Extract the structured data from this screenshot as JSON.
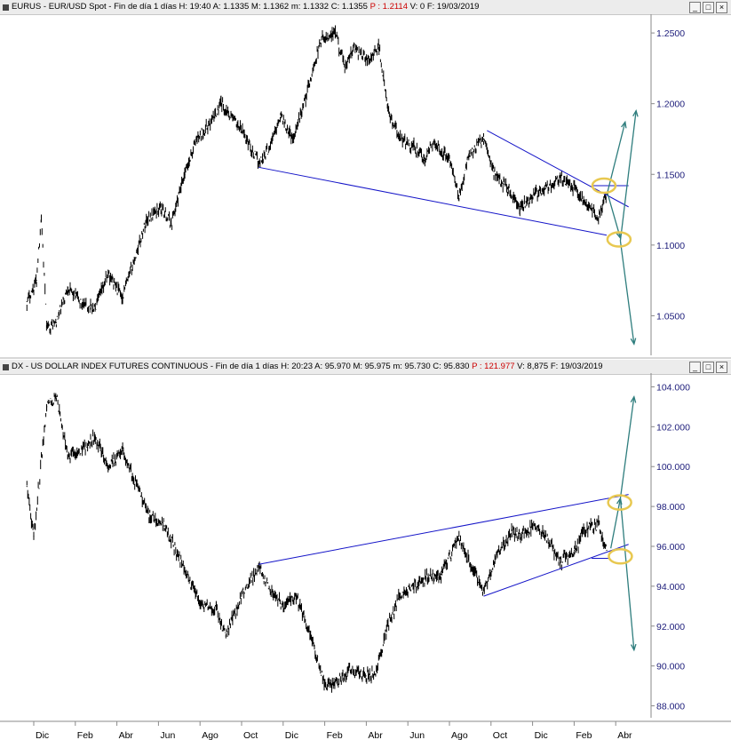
{
  "panes": {
    "top": {
      "symbol": "EURUS",
      "title": "EUR/USD Spot",
      "period": "Fin de día 1 días",
      "stats": [
        {
          "label": "H:",
          "value": "19:40"
        },
        {
          "label": "A:",
          "value": "1.1335"
        },
        {
          "label": "M:",
          "value": "1.1362"
        },
        {
          "label": "m:",
          "value": "1.1332"
        },
        {
          "label": "C:",
          "value": "1.1355"
        }
      ],
      "p_label": "P : 1.2114",
      "v_label": "V: 0",
      "date_label": "F: 19/03/2019"
    },
    "bottom": {
      "symbol": "DX",
      "title": "US DOLLAR INDEX FUTURES CONTINUOUS",
      "period": "Fin de día 1 días",
      "stats": [
        {
          "label": "H:",
          "value": "20:23"
        },
        {
          "label": "A:",
          "value": "95.970"
        },
        {
          "label": "M:",
          "value": "95.975"
        },
        {
          "label": "m:",
          "value": "95.730"
        },
        {
          "label": "C:",
          "value": "95.830"
        }
      ],
      "p_label": "P : 121.977",
      "v_label": "V: 8,875",
      "date_label": "F: 19/03/2019"
    }
  },
  "window_buttons": {
    "minimize": "_",
    "maximize": "□",
    "close": "×"
  },
  "colors": {
    "price": "#000000",
    "trendline": "#1414c8",
    "arrow": "#2e7d7d",
    "highlight": "#e8c850",
    "axis_text": "#1c1c7a",
    "header_bg": "#ececec"
  },
  "chart_data": [
    {
      "type": "ohlc",
      "symbol": "EURUS",
      "x_axis": {
        "type": "time",
        "tick_labels": [
          "Dic",
          "Feb",
          "Abr",
          "Jun",
          "Ago",
          "Oct",
          "Dic",
          "Feb",
          "Abr",
          "Jun",
          "Ago",
          "Oct",
          "Dic",
          "Feb",
          "Abr"
        ],
        "first_month": "2016-12",
        "step_months": 2
      },
      "y_axis": {
        "tick_labels": [
          "1.2500",
          "1.2000",
          "1.1500",
          "1.1000",
          "1.0500"
        ],
        "ticks": [
          1.25,
          1.2,
          1.15,
          1.1,
          1.05
        ],
        "range": [
          1.022,
          1.262
        ],
        "position": "right"
      },
      "series": [
        {
          "values": [
            {
              "date": "2016-11-21",
              "close": 1.06
            },
            {
              "date": "2016-12-05",
              "close": 1.075
            },
            {
              "date": "2016-12-12",
              "close": 1.12
            },
            {
              "date": "2016-12-20",
              "close": 1.042
            },
            {
              "date": "2017-01-03",
              "close": 1.045
            },
            {
              "date": "2017-01-20",
              "close": 1.07
            },
            {
              "date": "2017-02-10",
              "close": 1.058
            },
            {
              "date": "2017-03-01",
              "close": 1.055
            },
            {
              "date": "2017-03-20",
              "close": 1.08
            },
            {
              "date": "2017-04-10",
              "close": 1.063
            },
            {
              "date": "2017-04-26",
              "close": 1.088
            },
            {
              "date": "2017-05-15",
              "close": 1.118
            },
            {
              "date": "2017-06-05",
              "close": 1.127
            },
            {
              "date": "2017-06-20",
              "close": 1.115
            },
            {
              "date": "2017-07-10",
              "close": 1.15
            },
            {
              "date": "2017-07-27",
              "close": 1.175
            },
            {
              "date": "2017-08-15",
              "close": 1.185
            },
            {
              "date": "2017-09-01",
              "close": 1.2
            },
            {
              "date": "2017-09-18",
              "close": 1.19
            },
            {
              "date": "2017-10-05",
              "close": 1.178
            },
            {
              "date": "2017-10-26",
              "close": 1.158
            },
            {
              "date": "2017-11-10",
              "close": 1.168
            },
            {
              "date": "2017-11-27",
              "close": 1.192
            },
            {
              "date": "2017-12-15",
              "close": 1.175
            },
            {
              "date": "2018-01-03",
              "close": 1.205
            },
            {
              "date": "2018-01-25",
              "close": 1.245
            },
            {
              "date": "2018-02-15",
              "close": 1.25
            },
            {
              "date": "2018-03-01",
              "close": 1.225
            },
            {
              "date": "2018-03-15",
              "close": 1.24
            },
            {
              "date": "2018-04-05",
              "close": 1.23
            },
            {
              "date": "2018-04-20",
              "close": 1.24
            },
            {
              "date": "2018-05-03",
              "close": 1.195
            },
            {
              "date": "2018-05-20",
              "close": 1.175
            },
            {
              "date": "2018-06-10",
              "close": 1.17
            },
            {
              "date": "2018-06-25",
              "close": 1.16
            },
            {
              "date": "2018-07-10",
              "close": 1.172
            },
            {
              "date": "2018-08-01",
              "close": 1.16
            },
            {
              "date": "2018-08-15",
              "close": 1.135
            },
            {
              "date": "2018-08-30",
              "close": 1.165
            },
            {
              "date": "2018-09-20",
              "close": 1.175
            },
            {
              "date": "2018-10-05",
              "close": 1.152
            },
            {
              "date": "2018-10-25",
              "close": 1.14
            },
            {
              "date": "2018-11-12",
              "close": 1.125
            },
            {
              "date": "2018-11-30",
              "close": 1.135
            },
            {
              "date": "2018-12-20",
              "close": 1.14
            },
            {
              "date": "2019-01-10",
              "close": 1.148
            },
            {
              "date": "2019-01-31",
              "close": 1.14
            },
            {
              "date": "2019-02-15",
              "close": 1.13
            },
            {
              "date": "2019-03-07",
              "close": 1.12
            },
            {
              "date": "2019-03-19",
              "close": 1.136
            }
          ]
        }
      ],
      "annotations": {
        "trendlines": [
          {
            "from": {
              "date": "2017-10-26",
              "value": 1.155
            },
            "to": {
              "date": "2019-03-19",
              "value": 1.107
            }
          },
          {
            "from": {
              "date": "2018-09-25",
              "value": 1.181
            },
            "to": {
              "date": "2019-04-20",
              "value": 1.127
            }
          },
          {
            "from": {
              "date": "2019-02-25",
              "value": 1.142
            },
            "to": {
              "date": "2019-04-20",
              "value": 1.142
            }
          }
        ],
        "arrows": [
          {
            "from": {
              "date": "2019-03-20",
              "value": 1.137
            },
            "to": {
              "date": "2019-04-15",
              "value": 1.187
            }
          },
          {
            "from": {
              "date": "2019-03-20",
              "value": 1.137
            },
            "to": {
              "date": "2019-04-08",
              "value": 1.105
            }
          },
          {
            "from": {
              "date": "2019-04-08",
              "value": 1.103
            },
            "to": {
              "date": "2019-05-01",
              "value": 1.195
            }
          },
          {
            "from": {
              "date": "2019-04-08",
              "value": 1.103
            },
            "to": {
              "date": "2019-04-28",
              "value": 1.03
            }
          }
        ],
        "highlights": [
          {
            "date": "2019-03-15",
            "value": 1.142
          },
          {
            "date": "2019-04-06",
            "value": 1.104
          }
        ]
      }
    },
    {
      "type": "ohlc",
      "symbol": "DX",
      "x_axis": {
        "type": "time",
        "tick_labels": [
          "Dic",
          "Feb",
          "Abr",
          "Jun",
          "Ago",
          "Oct",
          "Dic",
          "Feb",
          "Abr",
          "Jun",
          "Ago",
          "Oct",
          "Dic",
          "Feb",
          "Abr"
        ],
        "first_month": "2016-12",
        "step_months": 2
      },
      "y_axis": {
        "tick_labels": [
          "104.000",
          "102.000",
          "100.000",
          "98.000",
          "96.000",
          "94.000",
          "92.000",
          "90.000",
          "88.000"
        ],
        "ticks": [
          104,
          102,
          100,
          98,
          96,
          94,
          92,
          90,
          88
        ],
        "range": [
          87.4,
          104.6
        ],
        "position": "right"
      },
      "series": [
        {
          "values": [
            {
              "date": "2016-11-21",
              "close": 99.0
            },
            {
              "date": "2016-12-01",
              "close": 96.5
            },
            {
              "date": "2016-12-20",
              "close": 103.0
            },
            {
              "date": "2017-01-03",
              "close": 103.5
            },
            {
              "date": "2017-01-20",
              "close": 100.5
            },
            {
              "date": "2017-02-10",
              "close": 100.8
            },
            {
              "date": "2017-03-01",
              "close": 101.5
            },
            {
              "date": "2017-03-20",
              "close": 100.0
            },
            {
              "date": "2017-04-10",
              "close": 100.8
            },
            {
              "date": "2017-05-01",
              "close": 99.0
            },
            {
              "date": "2017-05-20",
              "close": 97.5
            },
            {
              "date": "2017-06-10",
              "close": 97.0
            },
            {
              "date": "2017-07-01",
              "close": 95.5
            },
            {
              "date": "2017-07-20",
              "close": 94.0
            },
            {
              "date": "2017-08-05",
              "close": 93.0
            },
            {
              "date": "2017-08-25",
              "close": 92.8
            },
            {
              "date": "2017-09-08",
              "close": 91.5
            },
            {
              "date": "2017-10-01",
              "close": 93.5
            },
            {
              "date": "2017-10-26",
              "close": 95.0
            },
            {
              "date": "2017-11-12",
              "close": 93.8
            },
            {
              "date": "2017-12-01",
              "close": 93.0
            },
            {
              "date": "2017-12-20",
              "close": 93.5
            },
            {
              "date": "2018-01-10",
              "close": 91.5
            },
            {
              "date": "2018-02-01",
              "close": 89.0
            },
            {
              "date": "2018-02-15",
              "close": 89.2
            },
            {
              "date": "2018-03-10",
              "close": 89.8
            },
            {
              "date": "2018-04-01",
              "close": 89.5
            },
            {
              "date": "2018-04-15",
              "close": 89.6
            },
            {
              "date": "2018-05-01",
              "close": 91.8
            },
            {
              "date": "2018-05-20",
              "close": 93.5
            },
            {
              "date": "2018-06-10",
              "close": 94.0
            },
            {
              "date": "2018-07-01",
              "close": 94.5
            },
            {
              "date": "2018-07-20",
              "close": 94.6
            },
            {
              "date": "2018-08-15",
              "close": 96.5
            },
            {
              "date": "2018-09-01",
              "close": 95.0
            },
            {
              "date": "2018-09-20",
              "close": 93.8
            },
            {
              "date": "2018-10-10",
              "close": 95.5
            },
            {
              "date": "2018-10-31",
              "close": 96.8
            },
            {
              "date": "2018-11-15",
              "close": 96.5
            },
            {
              "date": "2018-12-01",
              "close": 97.0
            },
            {
              "date": "2018-12-20",
              "close": 96.5
            },
            {
              "date": "2019-01-10",
              "close": 95.2
            },
            {
              "date": "2019-01-31",
              "close": 95.8
            },
            {
              "date": "2019-02-15",
              "close": 96.8
            },
            {
              "date": "2019-03-07",
              "close": 97.1
            },
            {
              "date": "2019-03-19",
              "close": 95.8
            }
          ]
        }
      ],
      "annotations": {
        "trendlines": [
          {
            "from": {
              "date": "2017-10-26",
              "value": 95.1
            },
            "to": {
              "date": "2019-04-20",
              "value": 98.6
            }
          },
          {
            "from": {
              "date": "2018-09-20",
              "value": 93.5
            },
            "to": {
              "date": "2019-04-20",
              "value": 96.1
            }
          },
          {
            "from": {
              "date": "2019-02-25",
              "value": 95.4
            },
            "to": {
              "date": "2019-03-22",
              "value": 95.4
            }
          }
        ],
        "arrows": [
          {
            "from": {
              "date": "2019-03-25",
              "value": 95.9
            },
            "to": {
              "date": "2019-04-08",
              "value": 98.4
            }
          },
          {
            "from": {
              "date": "2019-04-08",
              "value": 98.4
            },
            "to": {
              "date": "2019-04-28",
              "value": 103.5
            }
          },
          {
            "from": {
              "date": "2019-04-08",
              "value": 98.4
            },
            "to": {
              "date": "2019-04-28",
              "value": 90.8
            }
          }
        ],
        "highlights": [
          {
            "date": "2019-04-07",
            "value": 98.2
          },
          {
            "date": "2019-04-08",
            "value": 95.5
          }
        ]
      }
    }
  ]
}
